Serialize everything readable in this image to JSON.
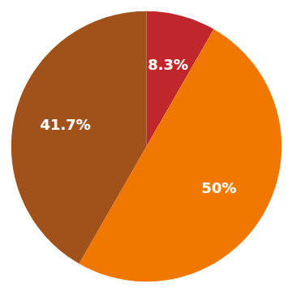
{
  "chart_data": {
    "type": "pie",
    "values": [
      8.3,
      50.0,
      41.7
    ],
    "value_labels": [
      "8.3%",
      "50%",
      "41.7%"
    ],
    "colors": [
      "#c0272d",
      "#f07800",
      "#a0521a"
    ],
    "data_labels": true
  }
}
